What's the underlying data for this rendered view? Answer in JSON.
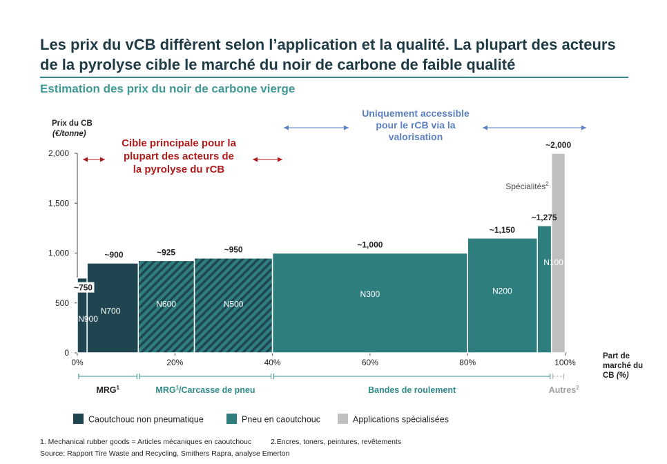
{
  "title": "Les prix du vCB diffèrent selon l’application et la qualité. La plupart des acteurs de la pyrolyse cible le marché du noir de carbone de faible qualité",
  "subtitle": "Estimation des prix du noir de carbone vierge",
  "colors": {
    "non_pneumatique": "#1f4650",
    "pneu": "#2f7e7e",
    "specialisees": "#c0c0c0",
    "target_text": "#b01c1c",
    "accessible_text": "#5a7fc2",
    "segment_text": "#2f8a8a"
  },
  "chart_data": {
    "type": "bar",
    "variable_width": true,
    "ylabel": "Prix du CB",
    "ylabel_unit": "(€/tonne)",
    "xlabel": "Part de marché du CB",
    "xlabel_unit": "(%)",
    "ylim": [
      0,
      2000
    ],
    "xlim": [
      0,
      100
    ],
    "yticks": [
      "0",
      "500",
      "1,000",
      "1,500",
      "2,000"
    ],
    "xticks": [
      "0%",
      "20%",
      "40%",
      "60%",
      "80%",
      "100%"
    ],
    "bars": [
      {
        "name": "N900",
        "x0": 0,
        "x1": 2,
        "value": 750,
        "label": "~750",
        "category": "non_pneumatique",
        "hatched": false
      },
      {
        "name": "N700",
        "x0": 2,
        "x1": 12.5,
        "value": 900,
        "label": "~900",
        "category": "non_pneumatique",
        "hatched": false
      },
      {
        "name": "N600",
        "x0": 12.5,
        "x1": 24,
        "value": 925,
        "label": "~925",
        "category": "non_pneumatique",
        "hatched": true
      },
      {
        "name": "N500",
        "x0": 24,
        "x1": 40,
        "value": 950,
        "label": "~950",
        "category": "pneu",
        "hatched": true
      },
      {
        "name": "N300",
        "x0": 40,
        "x1": 80,
        "value": 1000,
        "label": "~1,000",
        "category": "pneu",
        "hatched": false
      },
      {
        "name": "N200",
        "x0": 80,
        "x1": 94.3,
        "value": 1150,
        "label": "~1,150",
        "category": "pneu",
        "hatched": false
      },
      {
        "name": "N100",
        "x0": 94.3,
        "x1": 97.2,
        "value": 1275,
        "label": "~1,275",
        "category": "pneu",
        "hatched": false
      },
      {
        "name": "Spécialités",
        "x0": 97.2,
        "x1": 100,
        "value": 2000,
        "label": "~2,000",
        "category": "specialisees",
        "hatched": false
      }
    ],
    "annotations": {
      "target": "Cible principale pour la plupart des acteurs de la pyrolyse du rCB",
      "accessible": "Uniquement accessible pour le rCB via la valorisation"
    },
    "segments": [
      {
        "label": "MRG",
        "sup": "1",
        "from": 0,
        "to": 12.5
      },
      {
        "label": "MRG",
        "sup": "1",
        "suffix": "/Carcasse de pneu",
        "from": 12.5,
        "to": 40
      },
      {
        "label": "Bandes de roulement",
        "sup": "",
        "from": 40,
        "to": 97.2
      },
      {
        "label": "Autres",
        "sup": "2",
        "from": 97.2,
        "to": 100
      }
    ],
    "legend": [
      {
        "label": "Caoutchouc non pneumatique",
        "category": "non_pneumatique"
      },
      {
        "label": "Pneu en caoutchouc",
        "category": "pneu"
      },
      {
        "label": "Applications spécialisées",
        "category": "specialisees"
      }
    ],
    "legend_position": "bottom",
    "grid": false
  },
  "footnotes": {
    "note1": "1. Mechanical rubber goods = Articles mécaniques en caoutchouc",
    "note2": "2.Encres, toners, peintures, revêtements",
    "source": "Source: Rapport Tire Waste and Recycling, Smithers Rapra, analyse Emerton"
  }
}
